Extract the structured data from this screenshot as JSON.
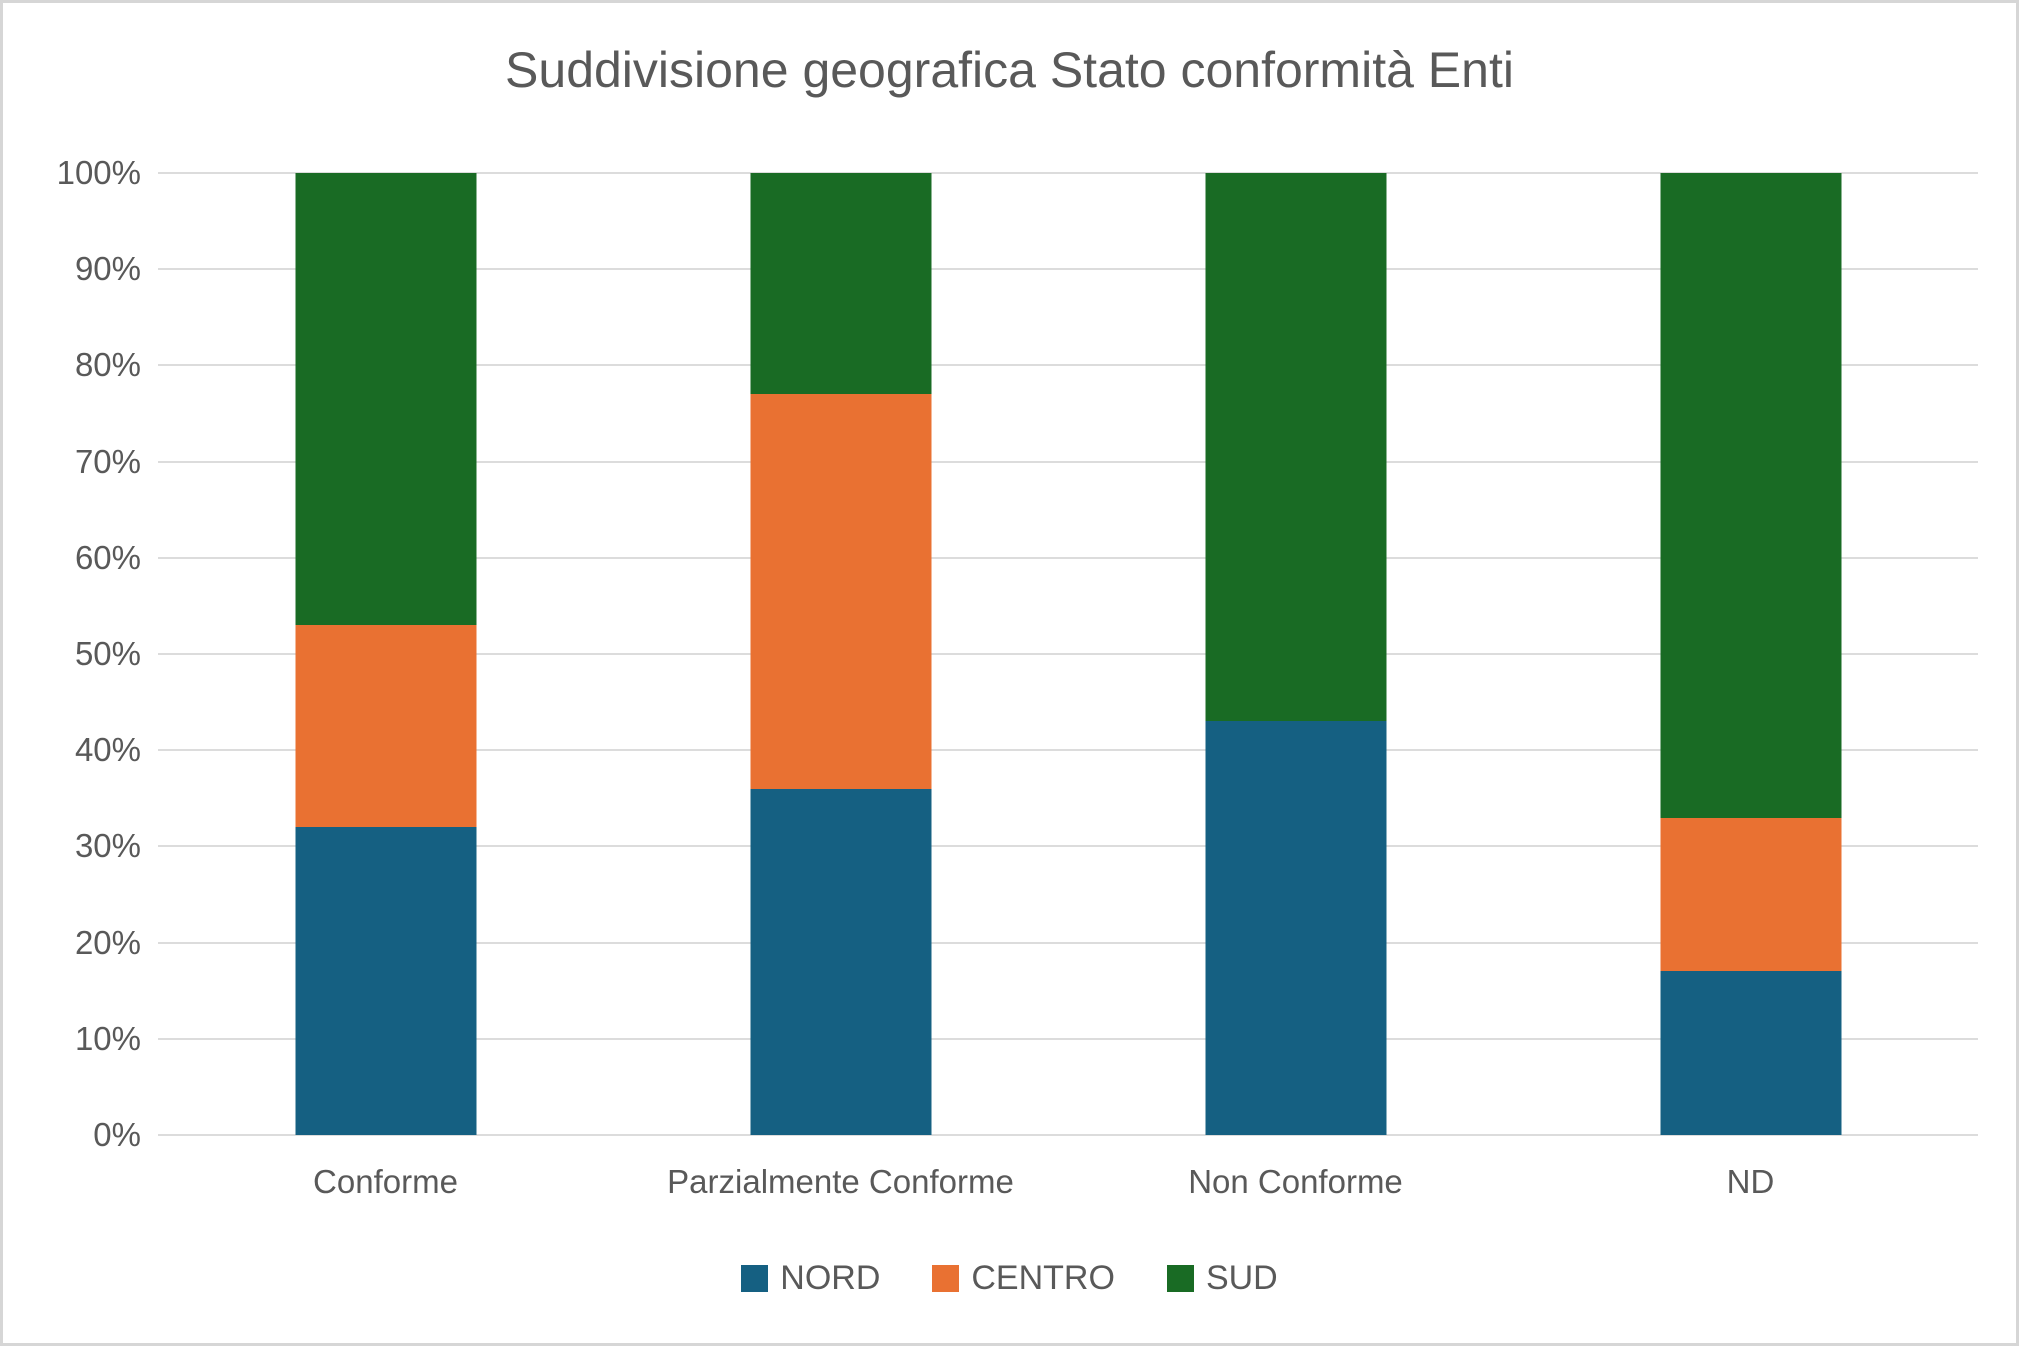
{
  "title": "Suddivisione geografica Stato conformità Enti",
  "colors": {
    "nord": "#156082",
    "centro": "#E97132",
    "sud": "#196B24",
    "text": "#595959",
    "gridline": "#DCDCDC",
    "frame_border": "#D6D6D6"
  },
  "chart_data": {
    "type": "bar",
    "subtype": "stacked-100-percent",
    "title": "Suddivisione geografica Stato conformità Enti",
    "categories": [
      "Conforme",
      "Parzialmente Conforme",
      "Non Conforme",
      "ND"
    ],
    "series": [
      {
        "name": "NORD",
        "color": "#156082",
        "values": [
          32,
          36,
          43,
          17
        ]
      },
      {
        "name": "CENTRO",
        "color": "#E97132",
        "values": [
          21,
          41,
          0,
          16
        ]
      },
      {
        "name": "SUD",
        "color": "#196B24",
        "values": [
          47,
          23,
          57,
          67
        ]
      }
    ],
    "xlabel": "",
    "ylabel": "",
    "ylim": [
      0,
      100
    ],
    "y_tick_step": 10,
    "y_tick_labels": [
      "0%",
      "10%",
      "20%",
      "30%",
      "40%",
      "50%",
      "60%",
      "70%",
      "80%",
      "90%",
      "100%"
    ],
    "grid": true,
    "legend_position": "bottom"
  }
}
